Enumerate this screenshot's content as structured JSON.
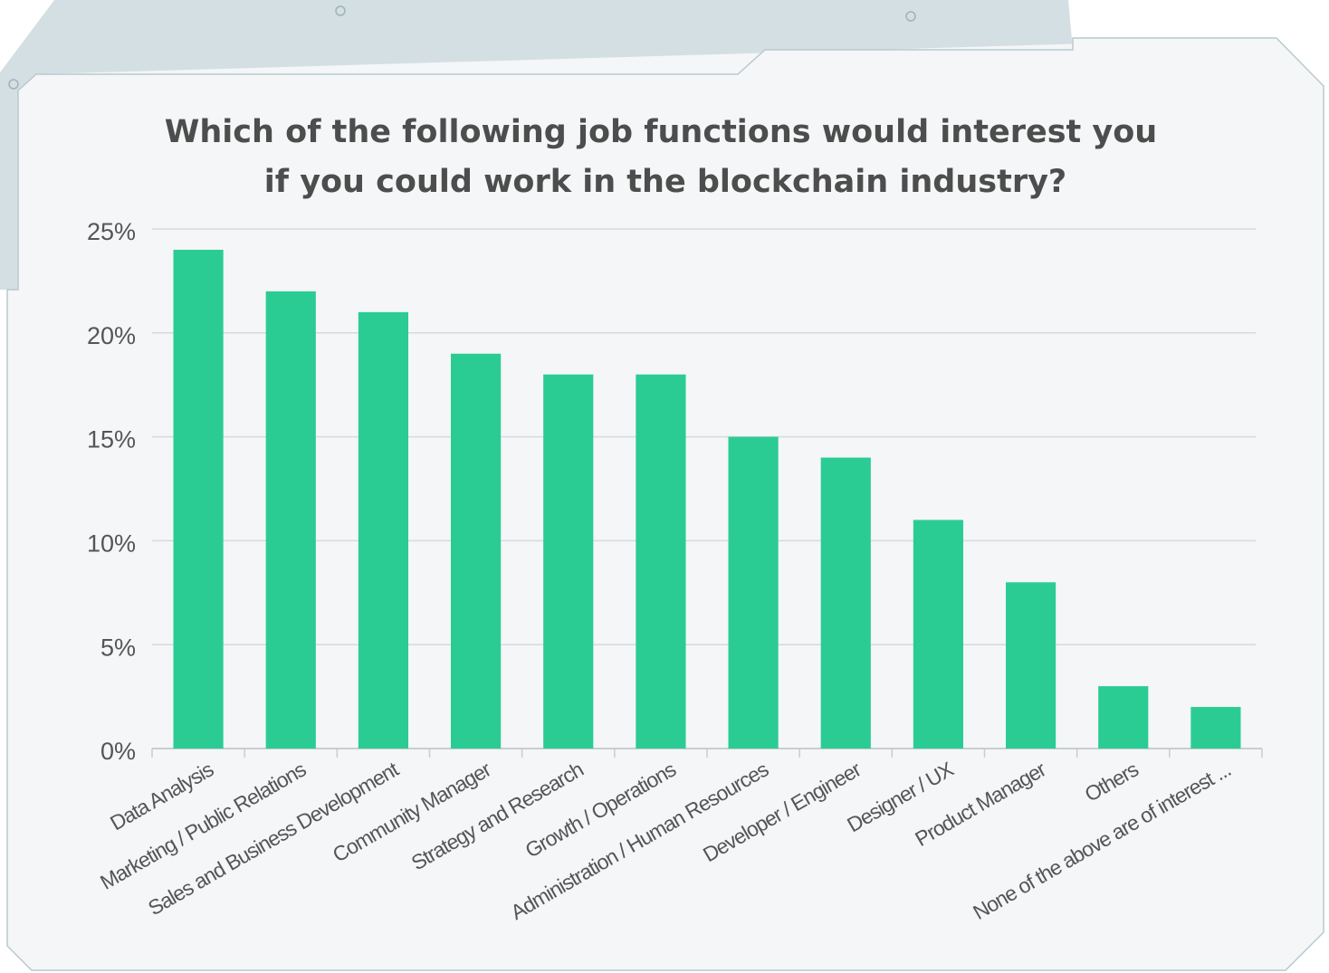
{
  "chart_data": {
    "type": "bar",
    "title": [
      "Which of the following job functions would interest you",
      "if you could work in the blockchain industry?"
    ],
    "categories": [
      "Data Analysis",
      "Marketing / Public Relations",
      "Sales and Business Development",
      "Community Manager",
      "Strategy and Research",
      "Growth / Operations",
      "Administration / Human Resources",
      "Developer / Engineer",
      "Designer / UX",
      "Product Manager",
      "Others",
      "None of the above are of interest ..."
    ],
    "values": [
      24,
      22,
      21,
      19,
      18,
      18,
      15,
      14,
      11,
      8,
      3,
      2
    ],
    "color": "#2bcc94",
    "ylim": [
      0,
      25
    ],
    "yticks": [
      {
        "value": 0,
        "label": "0%"
      },
      {
        "value": 5,
        "label": "5%"
      },
      {
        "value": 10,
        "label": "10%"
      },
      {
        "value": 15,
        "label": "15%"
      },
      {
        "value": 20,
        "label": "20%"
      },
      {
        "value": 25,
        "label": "25%"
      }
    ],
    "grid": true
  }
}
